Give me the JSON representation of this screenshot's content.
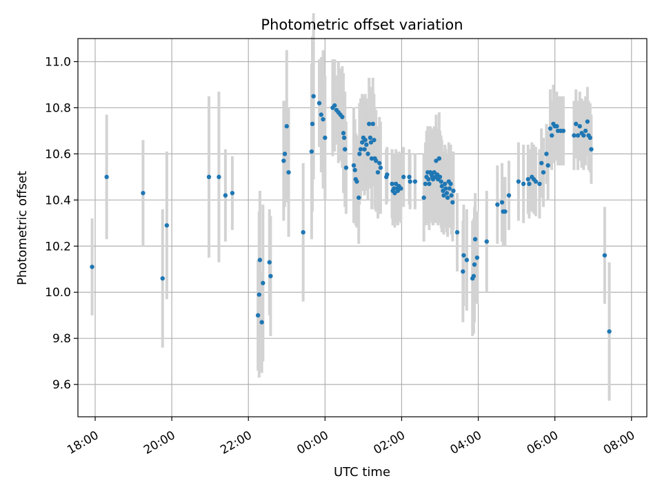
{
  "chart_data": {
    "type": "scatter",
    "title": "Photometric offset variation",
    "xlabel": "UTC time",
    "ylabel": "Photometric offset",
    "x_unit": "hours",
    "xlim": [
      -6.45,
      8.4
    ],
    "ylim": [
      9.46,
      11.1
    ],
    "grid": true,
    "x_ticks": [
      {
        "value": -6,
        "label": "18:00"
      },
      {
        "value": -4,
        "label": "20:00"
      },
      {
        "value": -2,
        "label": "22:00"
      },
      {
        "value": 0,
        "label": "00:00"
      },
      {
        "value": 2,
        "label": "02:00"
      },
      {
        "value": 4,
        "label": "04:00"
      },
      {
        "value": 6,
        "label": "06:00"
      },
      {
        "value": 8,
        "label": "08:00"
      }
    ],
    "y_ticks": [
      {
        "value": 9.6,
        "label": "9.6"
      },
      {
        "value": 9.8,
        "label": "9.8"
      },
      {
        "value": 10.0,
        "label": "10.0"
      },
      {
        "value": 10.2,
        "label": "10.2"
      },
      {
        "value": 10.4,
        "label": "10.4"
      },
      {
        "value": 10.6,
        "label": "10.6"
      },
      {
        "value": 10.8,
        "label": "10.8"
      },
      {
        "value": 11.0,
        "label": "11.0"
      }
    ],
    "colors": {
      "point": "#1f77b4",
      "errorbar": "#d3d3d3",
      "grid": "#b0b0b0",
      "axis": "#000000"
    },
    "series": [
      {
        "points": [
          [
            -6.08,
            10.11,
            0.21
          ],
          [
            -5.7,
            10.5,
            0.27
          ],
          [
            -4.75,
            10.43,
            0.23
          ],
          [
            -4.24,
            10.06,
            0.3
          ],
          [
            -4.13,
            10.29,
            0.32
          ],
          [
            -3.03,
            10.5,
            0.35
          ],
          [
            -2.77,
            10.5,
            0.37
          ],
          [
            -2.6,
            10.42,
            0.2
          ],
          [
            -2.42,
            10.43,
            0.16
          ],
          [
            -1.75,
            9.9,
            0.24
          ],
          [
            -1.7,
            10.14,
            0.3
          ],
          [
            -1.65,
            9.87,
            0.22
          ],
          [
            -1.45,
            10.13,
            0.23
          ],
          [
            -1.72,
            9.99,
            0.36
          ],
          [
            -1.62,
            10.04,
            0.34
          ],
          [
            -1.42,
            10.07,
            0.26
          ],
          [
            -1.08,
            10.57,
            0.26
          ],
          [
            -1.05,
            10.6,
            0.23
          ],
          [
            -1.0,
            10.72,
            0.33
          ],
          [
            -0.95,
            10.52,
            0.28
          ],
          [
            -0.57,
            10.26,
            0.3
          ],
          [
            -0.35,
            10.61,
            0.38
          ],
          [
            -0.33,
            10.73,
            0.38
          ],
          [
            -0.3,
            10.85,
            0.36
          ],
          [
            -0.15,
            10.82,
            0.19
          ],
          [
            -0.1,
            10.77,
            0.25
          ],
          [
            -0.05,
            10.75,
            0.3
          ],
          [
            0.0,
            10.67,
            0.27
          ],
          [
            0.2,
            10.8,
            0.21
          ],
          [
            0.25,
            10.81,
            0.2
          ],
          [
            0.3,
            10.79,
            0.15
          ],
          [
            0.35,
            10.78,
            0.22
          ],
          [
            0.4,
            10.77,
            0.2
          ],
          [
            0.45,
            10.76,
            0.22
          ],
          [
            0.48,
            10.69,
            0.26
          ],
          [
            0.5,
            10.67,
            0.2
          ],
          [
            0.52,
            10.62,
            0.25
          ],
          [
            0.55,
            10.54,
            0.2
          ],
          [
            0.75,
            10.55,
            0.25
          ],
          [
            0.78,
            10.53,
            0.22
          ],
          [
            0.8,
            10.49,
            0.2
          ],
          [
            0.83,
            10.48,
            0.2
          ],
          [
            0.88,
            10.41,
            0.2
          ],
          [
            0.9,
            10.6,
            0.22
          ],
          [
            0.93,
            10.62,
            0.22
          ],
          [
            0.97,
            10.65,
            0.21
          ],
          [
            1.0,
            10.67,
            0.18
          ],
          [
            1.03,
            10.62,
            0.2
          ],
          [
            1.05,
            10.66,
            0.2
          ],
          [
            1.08,
            10.64,
            0.2
          ],
          [
            1.12,
            10.6,
            0.2
          ],
          [
            1.15,
            10.73,
            0.2
          ],
          [
            1.18,
            10.67,
            0.22
          ],
          [
            1.2,
            10.65,
            0.2
          ],
          [
            1.22,
            10.58,
            0.22
          ],
          [
            1.25,
            10.73,
            0.2
          ],
          [
            1.28,
            10.66,
            0.2
          ],
          [
            1.3,
            10.58,
            0.22
          ],
          [
            1.33,
            10.57,
            0.22
          ],
          [
            1.38,
            10.52,
            0.2
          ],
          [
            1.42,
            10.56,
            0.2
          ],
          [
            1.45,
            10.54,
            0.2
          ],
          [
            1.6,
            10.5,
            0.12
          ],
          [
            1.62,
            10.51,
            0.12
          ],
          [
            1.75,
            10.47,
            0.15
          ],
          [
            1.77,
            10.44,
            0.15
          ],
          [
            1.8,
            10.45,
            0.15
          ],
          [
            1.82,
            10.43,
            0.15
          ],
          [
            1.85,
            10.47,
            0.15
          ],
          [
            1.88,
            10.45,
            0.15
          ],
          [
            1.9,
            10.44,
            0.15
          ],
          [
            1.93,
            10.46,
            0.15
          ],
          [
            1.98,
            10.45,
            0.15
          ],
          [
            2.05,
            10.5,
            0.13
          ],
          [
            2.2,
            10.5,
            0.12
          ],
          [
            2.22,
            10.48,
            0.12
          ],
          [
            2.35,
            10.48,
            0.12
          ],
          [
            2.58,
            10.41,
            0.19
          ],
          [
            2.62,
            10.47,
            0.18
          ],
          [
            2.65,
            10.5,
            0.2
          ],
          [
            2.68,
            10.52,
            0.2
          ],
          [
            2.7,
            10.49,
            0.2
          ],
          [
            2.72,
            10.47,
            0.2
          ],
          [
            2.75,
            10.52,
            0.2
          ],
          [
            2.78,
            10.51,
            0.2
          ],
          [
            2.8,
            10.5,
            0.2
          ],
          [
            2.82,
            10.49,
            0.2
          ],
          [
            2.85,
            10.52,
            0.2
          ],
          [
            2.88,
            10.5,
            0.2
          ],
          [
            2.9,
            10.57,
            0.2
          ],
          [
            2.93,
            10.51,
            0.2
          ],
          [
            2.95,
            10.49,
            0.2
          ],
          [
            2.98,
            10.58,
            0.2
          ],
          [
            3.0,
            10.5,
            0.2
          ],
          [
            3.03,
            10.48,
            0.2
          ],
          [
            3.05,
            10.46,
            0.2
          ],
          [
            3.08,
            10.44,
            0.17
          ],
          [
            3.1,
            10.42,
            0.17
          ],
          [
            3.13,
            10.47,
            0.17
          ],
          [
            3.15,
            10.45,
            0.17
          ],
          [
            3.18,
            10.43,
            0.17
          ],
          [
            3.2,
            10.41,
            0.17
          ],
          [
            3.23,
            10.48,
            0.17
          ],
          [
            3.25,
            10.45,
            0.17
          ],
          [
            3.28,
            10.47,
            0.17
          ],
          [
            3.3,
            10.42,
            0.17
          ],
          [
            3.33,
            10.39,
            0.17
          ],
          [
            3.35,
            10.44,
            0.17
          ],
          [
            3.45,
            10.26,
            0.17
          ],
          [
            3.6,
            10.09,
            0.22
          ],
          [
            3.62,
            10.16,
            0.22
          ],
          [
            3.7,
            10.14,
            0.22
          ],
          [
            3.85,
            10.06,
            0.25
          ],
          [
            3.88,
            10.07,
            0.25
          ],
          [
            3.9,
            10.12,
            0.25
          ],
          [
            3.92,
            10.23,
            0.2
          ],
          [
            3.97,
            10.15,
            0.2
          ],
          [
            4.22,
            10.22,
            0.22
          ],
          [
            4.5,
            10.38,
            0.17
          ],
          [
            4.62,
            10.39,
            0.17
          ],
          [
            4.65,
            10.35,
            0.15
          ],
          [
            4.7,
            10.35,
            0.15
          ],
          [
            4.8,
            10.42,
            0.15
          ],
          [
            5.05,
            10.48,
            0.17
          ],
          [
            5.18,
            10.47,
            0.17
          ],
          [
            5.3,
            10.49,
            0.15
          ],
          [
            5.33,
            10.47,
            0.15
          ],
          [
            5.4,
            10.5,
            0.15
          ],
          [
            5.45,
            10.49,
            0.15
          ],
          [
            5.5,
            10.48,
            0.15
          ],
          [
            5.6,
            10.47,
            0.15
          ],
          [
            5.65,
            10.56,
            0.15
          ],
          [
            5.7,
            10.52,
            0.15
          ],
          [
            5.78,
            10.6,
            0.13
          ],
          [
            5.82,
            10.55,
            0.15
          ],
          [
            5.88,
            10.71,
            0.17
          ],
          [
            5.92,
            10.68,
            0.15
          ],
          [
            5.96,
            10.73,
            0.17
          ],
          [
            6.0,
            10.72,
            0.15
          ],
          [
            6.05,
            10.72,
            0.15
          ],
          [
            6.08,
            10.7,
            0.15
          ],
          [
            6.15,
            10.7,
            0.15
          ],
          [
            6.22,
            10.7,
            0.15
          ],
          [
            6.5,
            10.68,
            0.15
          ],
          [
            6.55,
            10.73,
            0.15
          ],
          [
            6.6,
            10.68,
            0.15
          ],
          [
            6.65,
            10.72,
            0.15
          ],
          [
            6.7,
            10.69,
            0.15
          ],
          [
            6.75,
            10.68,
            0.15
          ],
          [
            6.8,
            10.7,
            0.15
          ],
          [
            6.85,
            10.74,
            0.15
          ],
          [
            6.88,
            10.68,
            0.15
          ],
          [
            6.92,
            10.67,
            0.15
          ],
          [
            6.95,
            10.62,
            0.15
          ],
          [
            7.3,
            10.16,
            0.21
          ],
          [
            7.42,
            9.83,
            0.3
          ]
        ]
      }
    ]
  }
}
